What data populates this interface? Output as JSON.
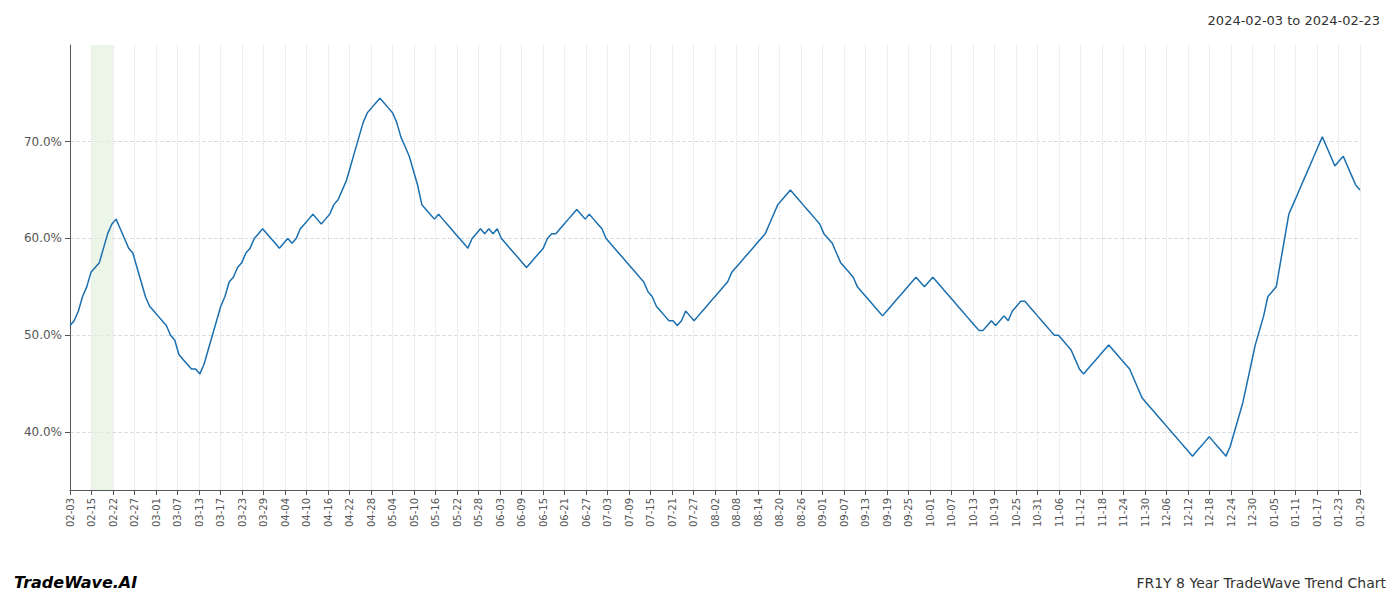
{
  "chart_data": {
    "type": "line",
    "annotations": [
      "2024-02-03 to 2024-02-23",
      "TradeWave.AI",
      "FR1Y 8 Year TradeWave Trend Chart"
    ],
    "color": "#1a6faf",
    "grid": true,
    "highlight": {
      "from": "02-15",
      "to": "02-22",
      "color": "#dff0d8"
    },
    "xlim": [
      0,
      308
    ],
    "xticks": [
      {
        "value": 0,
        "label": "02-03"
      },
      {
        "value": 5.133333333333334,
        "label": "02-15"
      },
      {
        "value": 10.266666666666667,
        "label": "02-22"
      },
      {
        "value": 15.4,
        "label": "02-27"
      },
      {
        "value": 20.533333333333335,
        "label": "03-01"
      },
      {
        "value": 25.666666666666668,
        "label": "03-07"
      },
      {
        "value": 30.8,
        "label": "03-13"
      },
      {
        "value": 35.93333333333333,
        "label": "03-17"
      },
      {
        "value": 41.06666666666667,
        "label": "03-23"
      },
      {
        "value": 46.2,
        "label": "03-29"
      },
      {
        "value": 51.333333333333336,
        "label": "04-04"
      },
      {
        "value": 56.46666666666667,
        "label": "04-10"
      },
      {
        "value": 61.6,
        "label": "04-16"
      },
      {
        "value": 66.73333333333333,
        "label": "04-22"
      },
      {
        "value": 71.86666666666667,
        "label": "04-28"
      },
      {
        "value": 77,
        "label": "05-04"
      },
      {
        "value": 82.13333333333334,
        "label": "05-10"
      },
      {
        "value": 87.26666666666667,
        "label": "05-16"
      },
      {
        "value": 92.4,
        "label": "05-22"
      },
      {
        "value": 97.53333333333333,
        "label": "05-28"
      },
      {
        "value": 102.66666666666667,
        "label": "06-03"
      },
      {
        "value": 107.8,
        "label": "06-09"
      },
      {
        "value": 112.93333333333334,
        "label": "06-15"
      },
      {
        "value": 118.06666666666666,
        "label": "06-21"
      },
      {
        "value": 123.2,
        "label": "06-27"
      },
      {
        "value": 128.33333333333334,
        "label": "07-03"
      },
      {
        "value": 133.46666666666667,
        "label": "07-09"
      },
      {
        "value": 138.6,
        "label": "07-15"
      },
      {
        "value": 143.73333333333332,
        "label": "07-21"
      },
      {
        "value": 148.86666666666667,
        "label": "07-27"
      },
      {
        "value": 154,
        "label": "08-02"
      },
      {
        "value": 159.13333333333333,
        "label": "08-08"
      },
      {
        "value": 164.26666666666668,
        "label": "08-14"
      },
      {
        "value": 169.4,
        "label": "08-20"
      },
      {
        "value": 174.53333333333333,
        "label": "08-26"
      },
      {
        "value": 179.66666666666666,
        "label": "09-01"
      },
      {
        "value": 184.8,
        "label": "09-07"
      },
      {
        "value": 189.93333333333334,
        "label": "09-13"
      },
      {
        "value": 195.06666666666666,
        "label": "09-19"
      },
      {
        "value": 200.2,
        "label": "09-25"
      },
      {
        "value": 205.33333333333334,
        "label": "10-01"
      },
      {
        "value": 210.46666666666667,
        "label": "10-07"
      },
      {
        "value": 215.6,
        "label": "10-13"
      },
      {
        "value": 220.73333333333332,
        "label": "10-19"
      },
      {
        "value": 225.86666666666667,
        "label": "10-25"
      },
      {
        "value": 231,
        "label": "10-31"
      },
      {
        "value": 236.13333333333333,
        "label": "11-06"
      },
      {
        "value": 241.26666666666668,
        "label": "11-12"
      },
      {
        "value": 246.4,
        "label": "11-18"
      },
      {
        "value": 251.53333333333333,
        "label": "11-24"
      },
      {
        "value": 256.6666666666667,
        "label": "11-30"
      },
      {
        "value": 261.8,
        "label": "12-06"
      },
      {
        "value": 266.93333333333334,
        "label": "12-12"
      },
      {
        "value": 272.06666666666666,
        "label": "12-18"
      },
      {
        "value": 277.2,
        "label": "12-24"
      },
      {
        "value": 282.3333333333333,
        "label": "12-30"
      },
      {
        "value": 287.46666666666664,
        "label": "01-05"
      },
      {
        "value": 292.6,
        "label": "01-11"
      },
      {
        "value": 297.73333333333335,
        "label": "01-17"
      },
      {
        "value": 302.8666666666667,
        "label": "01-23"
      },
      {
        "value": 308,
        "label": "01-29"
      }
    ],
    "ylim": [
      34,
      80
    ],
    "yticks": [
      {
        "value": 40.0,
        "label": "40.0%"
      },
      {
        "value": 50.0,
        "label": "50.0%"
      },
      {
        "value": 60.0,
        "label": "60.0%"
      },
      {
        "value": 70.0,
        "label": "70.0%"
      }
    ],
    "values": [
      51.0,
      51.5,
      52.5,
      54.0,
      55.0,
      56.5,
      57.0,
      57.5,
      59.0,
      60.5,
      61.5,
      62.0,
      61.0,
      60.0,
      59.0,
      58.5,
      57.0,
      55.5,
      54.0,
      53.0,
      52.5,
      52.0,
      51.5,
      51.0,
      50.0,
      49.5,
      48.0,
      47.5,
      47.0,
      46.5,
      46.5,
      46.0,
      47.0,
      48.5,
      50.0,
      51.5,
      53.0,
      54.0,
      55.5,
      56.0,
      57.0,
      57.5,
      58.5,
      59.0,
      60.0,
      60.5,
      61.0,
      60.5,
      60.0,
      59.5,
      59.0,
      59.5,
      60.0,
      59.5,
      60.0,
      61.0,
      61.5,
      62.0,
      62.5,
      62.0,
      61.5,
      62.0,
      62.5,
      63.5,
      64.0,
      65.0,
      66.0,
      67.5,
      69.0,
      70.5,
      72.0,
      73.0,
      73.5,
      74.0,
      74.5,
      74.0,
      73.5,
      73.0,
      72.0,
      70.5,
      69.5,
      68.5,
      67.0,
      65.5,
      63.5,
      63.0,
      62.5,
      62.0,
      62.5,
      62.0,
      61.5,
      61.0,
      60.5,
      60.0,
      59.5,
      59.0,
      60.0,
      60.5,
      61.0,
      60.5,
      61.0,
      60.5,
      61.0,
      60.0,
      59.5,
      59.0,
      58.5,
      58.0,
      57.5,
      57.0,
      57.5,
      58.0,
      58.5,
      59.0,
      60.0,
      60.5,
      60.5,
      61.0,
      61.5,
      62.0,
      62.5,
      63.0,
      62.5,
      62.0,
      62.5,
      62.0,
      61.5,
      61.0,
      60.0,
      59.5,
      59.0,
      58.5,
      58.0,
      57.5,
      57.0,
      56.5,
      56.0,
      55.5,
      54.5,
      54.0,
      53.0,
      52.5,
      52.0,
      51.5,
      51.5,
      51.0,
      51.5,
      52.5,
      52.0,
      51.5,
      52.0,
      52.5,
      53.0,
      53.5,
      54.0,
      54.5,
      55.0,
      55.5,
      56.5,
      57.0,
      57.5,
      58.0,
      58.5,
      59.0,
      59.5,
      60.0,
      60.5,
      61.5,
      62.5,
      63.5,
      64.0,
      64.5,
      65.0,
      64.5,
      64.0,
      63.5,
      63.0,
      62.5,
      62.0,
      61.5,
      60.5,
      60.0,
      59.5,
      58.5,
      57.5,
      57.0,
      56.5,
      56.0,
      55.0,
      54.5,
      54.0,
      53.5,
      53.0,
      52.5,
      52.0,
      52.5,
      53.0,
      53.5,
      54.0,
      54.5,
      55.0,
      55.5,
      56.0,
      55.5,
      55.0,
      55.5,
      56.0,
      55.5,
      55.0,
      54.5,
      54.0,
      53.5,
      53.0,
      52.5,
      52.0,
      51.5,
      51.0,
      50.5,
      50.5,
      51.0,
      51.5,
      51.0,
      51.5,
      52.0,
      51.5,
      52.5,
      53.0,
      53.5,
      53.5,
      53.0,
      52.5,
      52.0,
      51.5,
      51.0,
      50.5,
      50.0,
      50.0,
      49.5,
      49.0,
      48.5,
      47.5,
      46.5,
      46.0,
      46.5,
      47.0,
      47.5,
      48.0,
      48.5,
      49.0,
      48.5,
      48.0,
      47.5,
      47.0,
      46.5,
      45.5,
      44.5,
      43.5,
      43.0,
      42.5,
      42.0,
      41.5,
      41.0,
      40.5,
      40.0,
      39.5,
      39.0,
      38.5,
      38.0,
      37.5,
      38.0,
      38.5,
      39.0,
      39.5,
      39.0,
      38.5,
      38.0,
      37.5,
      38.5,
      40.0,
      41.5,
      43.0,
      45.0,
      47.0,
      49.0,
      50.5,
      52.0,
      54.0,
      54.5,
      55.0,
      57.5,
      60.0,
      62.5,
      63.5,
      64.5,
      65.5,
      66.5,
      67.5,
      68.5,
      69.5,
      70.5,
      69.5,
      68.5,
      67.5,
      68.0,
      68.5,
      67.5,
      66.5,
      65.5,
      65.0
    ]
  }
}
